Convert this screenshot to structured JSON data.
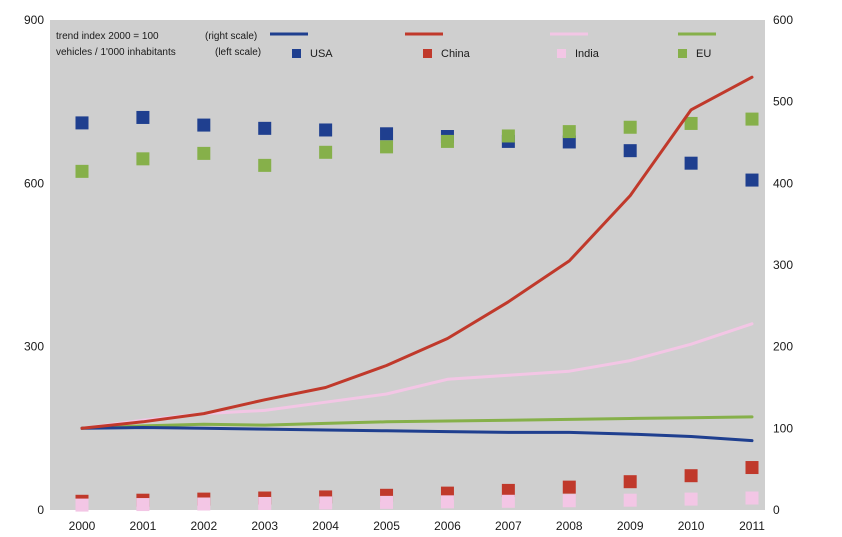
{
  "chart_data": {
    "type": "line",
    "title": "",
    "categories": [
      "2000",
      "2001",
      "2002",
      "2003",
      "2004",
      "2005",
      "2006",
      "2007",
      "2008",
      "2009",
      "2010",
      "2011"
    ],
    "left_axis": {
      "label": "vehicles / 1'000 inhabitants (left scale)",
      "range": [
        0,
        900
      ],
      "ticks": [
        "0",
        "300",
        "600",
        "900"
      ]
    },
    "right_axis": {
      "label": "trend index 2000 = 100 (right scale)",
      "range": [
        0,
        600
      ],
      "ticks": [
        "0",
        "100",
        "200",
        "300",
        "400",
        "500",
        "600"
      ]
    },
    "legend": {
      "trend_label": "trend index 2000 = 100",
      "trend_scale": "(right scale)",
      "vehicles_label": "vehicles / 1'000 inhabitants",
      "vehicles_scale": "(left scale)"
    },
    "series": [
      {
        "name": "USA",
        "color": "#1f3f8f",
        "vehicles": [
          711,
          721,
          707,
          701,
          698,
          691,
          686,
          677,
          676,
          660,
          637,
          606
        ],
        "trend": [
          100,
          101,
          100,
          99,
          98,
          97,
          96,
          95,
          95,
          93,
          90,
          85
        ]
      },
      {
        "name": "China",
        "color": "#c0392b",
        "vehicles": [
          16,
          18,
          20,
          22,
          24,
          27,
          31,
          36,
          42,
          52,
          63,
          78
        ],
        "trend": [
          100,
          108,
          118,
          135,
          150,
          177,
          210,
          255,
          305,
          385,
          490,
          530
        ]
      },
      {
        "name": "India",
        "color": "#f3c6e5",
        "vehicles": [
          9,
          10,
          11,
          12,
          13,
          14,
          15,
          16,
          17,
          18,
          20,
          22
        ],
        "trend": [
          100,
          110,
          118,
          122,
          132,
          142,
          160,
          165,
          170,
          183,
          203,
          228
        ]
      },
      {
        "name": "EU",
        "color": "#86b04a",
        "vehicles": [
          622,
          645,
          655,
          633,
          657,
          667,
          677,
          687,
          695,
          703,
          710,
          718
        ],
        "trend": [
          100,
          103,
          105,
          104,
          106,
          108,
          109,
          110,
          111,
          112,
          113,
          114
        ]
      }
    ],
    "grid": false
  }
}
